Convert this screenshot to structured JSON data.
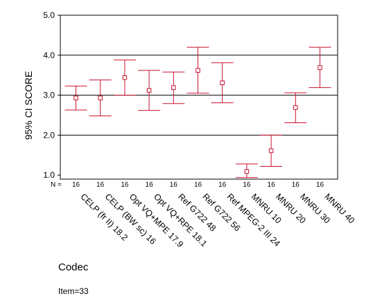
{
  "chart_data": {
    "type": "errorbar",
    "ylabel": "95% CI SCORE",
    "xlabel": "Codec",
    "footnote": "Item=33",
    "n_label": "N =",
    "ylim": [
      0.9,
      5.0
    ],
    "yticks": [
      "1.0",
      "2.0",
      "3.0",
      "4.0",
      "5.0"
    ],
    "ytick_values": [
      1.0,
      2.0,
      3.0,
      4.0,
      5.0
    ],
    "grid": "horizontal at 2.0, 3.0, 4.0",
    "color": "#c8102e",
    "categories": [
      "CELP (fr II) 18.2",
      "CELP (BW sc) 16",
      "Opt VQ+MPE 17.9",
      "Opt VQ+RPE 18.1",
      "Ref G722 48",
      "Ref G722 56",
      "Ref MPEG-2 III 24",
      "MNRU 10",
      "MNRU 20",
      "MNRU 30",
      "MNRU 40"
    ],
    "n": [
      "16",
      "16",
      "16",
      "16",
      "16",
      "16",
      "16",
      "16",
      "16",
      "16",
      "16"
    ],
    "mean": [
      2.93,
      2.93,
      3.44,
      3.12,
      3.19,
      3.62,
      3.31,
      1.09,
      1.61,
      2.69,
      3.69
    ],
    "lower": [
      2.63,
      2.48,
      3.0,
      2.62,
      2.79,
      3.05,
      2.81,
      0.94,
      1.22,
      2.31,
      3.19
    ],
    "upper": [
      3.23,
      3.38,
      3.88,
      3.62,
      3.58,
      4.2,
      3.81,
      1.28,
      2.0,
      3.06,
      4.2
    ]
  }
}
